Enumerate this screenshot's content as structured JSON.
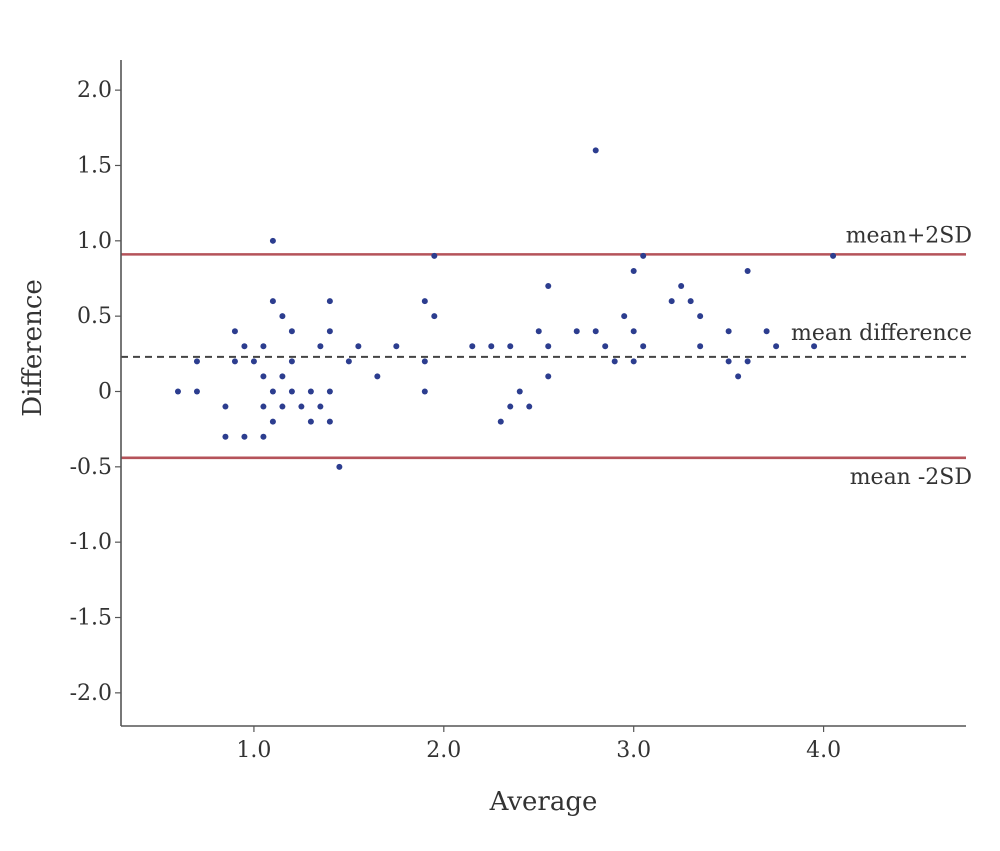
{
  "chart_data": {
    "type": "scatter",
    "title": "",
    "xlabel": "Average",
    "ylabel": "Difference",
    "xlim": [
      0.3,
      4.75
    ],
    "ylim": [
      -2.22,
      2.2
    ],
    "xticks": [
      1.0,
      2.0,
      3.0,
      4.0
    ],
    "xtick_labels": [
      "1.0",
      "2.0",
      "3.0",
      "4.0"
    ],
    "yticks": [
      2.0,
      1.5,
      1.0,
      0.5,
      0,
      -0.5,
      -1.0,
      -1.5,
      -2.0
    ],
    "ytick_labels": [
      "2.0",
      "1.5",
      "1.0",
      "0.5",
      "0",
      "-0.5",
      "-1.0",
      "-1.5",
      "-2.0"
    ],
    "grid": false,
    "reference_lines": [
      {
        "label": "mean+2SD",
        "y": 0.91,
        "style": "solid",
        "color": "#b5535a"
      },
      {
        "label": "mean difference",
        "y": 0.23,
        "style": "dashed",
        "color": "#444444"
      },
      {
        "label": "mean -2SD",
        "y": -0.44,
        "style": "solid",
        "color": "#b5535a"
      }
    ],
    "point_color": "#2c3d8f",
    "points": [
      {
        "x": 0.6,
        "y": 0
      },
      {
        "x": 0.7,
        "y": 0
      },
      {
        "x": 0.7,
        "y": 0.2
      },
      {
        "x": 0.85,
        "y": -0.1
      },
      {
        "x": 0.85,
        "y": -0.3
      },
      {
        "x": 0.9,
        "y": 0.4
      },
      {
        "x": 0.9,
        "y": 0.2
      },
      {
        "x": 0.95,
        "y": 0.3
      },
      {
        "x": 0.95,
        "y": -0.3
      },
      {
        "x": 1.0,
        "y": 0.2
      },
      {
        "x": 1.05,
        "y": 0.3
      },
      {
        "x": 1.05,
        "y": 0.1
      },
      {
        "x": 1.05,
        "y": -0.1
      },
      {
        "x": 1.05,
        "y": -0.3
      },
      {
        "x": 1.1,
        "y": 1.0
      },
      {
        "x": 1.1,
        "y": 0.6
      },
      {
        "x": 1.1,
        "y": 0
      },
      {
        "x": 1.1,
        "y": -0.2
      },
      {
        "x": 1.15,
        "y": 0.5
      },
      {
        "x": 1.15,
        "y": 0.1
      },
      {
        "x": 1.15,
        "y": -0.1
      },
      {
        "x": 1.2,
        "y": 0.4
      },
      {
        "x": 1.2,
        "y": 0.2
      },
      {
        "x": 1.2,
        "y": 0
      },
      {
        "x": 1.25,
        "y": -0.1
      },
      {
        "x": 1.3,
        "y": 0
      },
      {
        "x": 1.3,
        "y": -0.2
      },
      {
        "x": 1.35,
        "y": 0.3
      },
      {
        "x": 1.35,
        "y": -0.1
      },
      {
        "x": 1.4,
        "y": 0.6
      },
      {
        "x": 1.4,
        "y": 0.4
      },
      {
        "x": 1.4,
        "y": 0
      },
      {
        "x": 1.4,
        "y": -0.2
      },
      {
        "x": 1.45,
        "y": -0.5
      },
      {
        "x": 1.5,
        "y": 0.2
      },
      {
        "x": 1.55,
        "y": 0.3
      },
      {
        "x": 1.65,
        "y": 0.1
      },
      {
        "x": 1.75,
        "y": 0.3
      },
      {
        "x": 1.9,
        "y": 0.6
      },
      {
        "x": 1.9,
        "y": 0.2
      },
      {
        "x": 1.9,
        "y": 0
      },
      {
        "x": 1.95,
        "y": 0.9
      },
      {
        "x": 1.95,
        "y": 0.5
      },
      {
        "x": 2.15,
        "y": 0.3
      },
      {
        "x": 2.25,
        "y": 0.3
      },
      {
        "x": 2.3,
        "y": -0.2
      },
      {
        "x": 2.35,
        "y": 0.3
      },
      {
        "x": 2.35,
        "y": -0.1
      },
      {
        "x": 2.4,
        "y": 0
      },
      {
        "x": 2.45,
        "y": -0.1
      },
      {
        "x": 2.5,
        "y": 0.4
      },
      {
        "x": 2.55,
        "y": 0.7
      },
      {
        "x": 2.55,
        "y": 0.3
      },
      {
        "x": 2.55,
        "y": 0.1
      },
      {
        "x": 2.7,
        "y": 0.4
      },
      {
        "x": 2.8,
        "y": 1.6
      },
      {
        "x": 2.8,
        "y": 0.4
      },
      {
        "x": 2.85,
        "y": 0.3
      },
      {
        "x": 2.9,
        "y": 0.2
      },
      {
        "x": 2.95,
        "y": 0.5
      },
      {
        "x": 3.0,
        "y": 0.8
      },
      {
        "x": 3.0,
        "y": 0.4
      },
      {
        "x": 3.0,
        "y": 0.2
      },
      {
        "x": 3.05,
        "y": 0.9
      },
      {
        "x": 3.05,
        "y": 0.3
      },
      {
        "x": 3.2,
        "y": 0.6
      },
      {
        "x": 3.25,
        "y": 0.7
      },
      {
        "x": 3.3,
        "y": 0.6
      },
      {
        "x": 3.35,
        "y": 0.5
      },
      {
        "x": 3.35,
        "y": 0.3
      },
      {
        "x": 3.5,
        "y": 0.4
      },
      {
        "x": 3.5,
        "y": 0.2
      },
      {
        "x": 3.55,
        "y": 0.1
      },
      {
        "x": 3.6,
        "y": 0.8
      },
      {
        "x": 3.6,
        "y": 0.2
      },
      {
        "x": 3.7,
        "y": 0.4
      },
      {
        "x": 3.75,
        "y": 0.3
      },
      {
        "x": 3.95,
        "y": 0.3
      },
      {
        "x": 4.05,
        "y": 0.9
      }
    ]
  }
}
